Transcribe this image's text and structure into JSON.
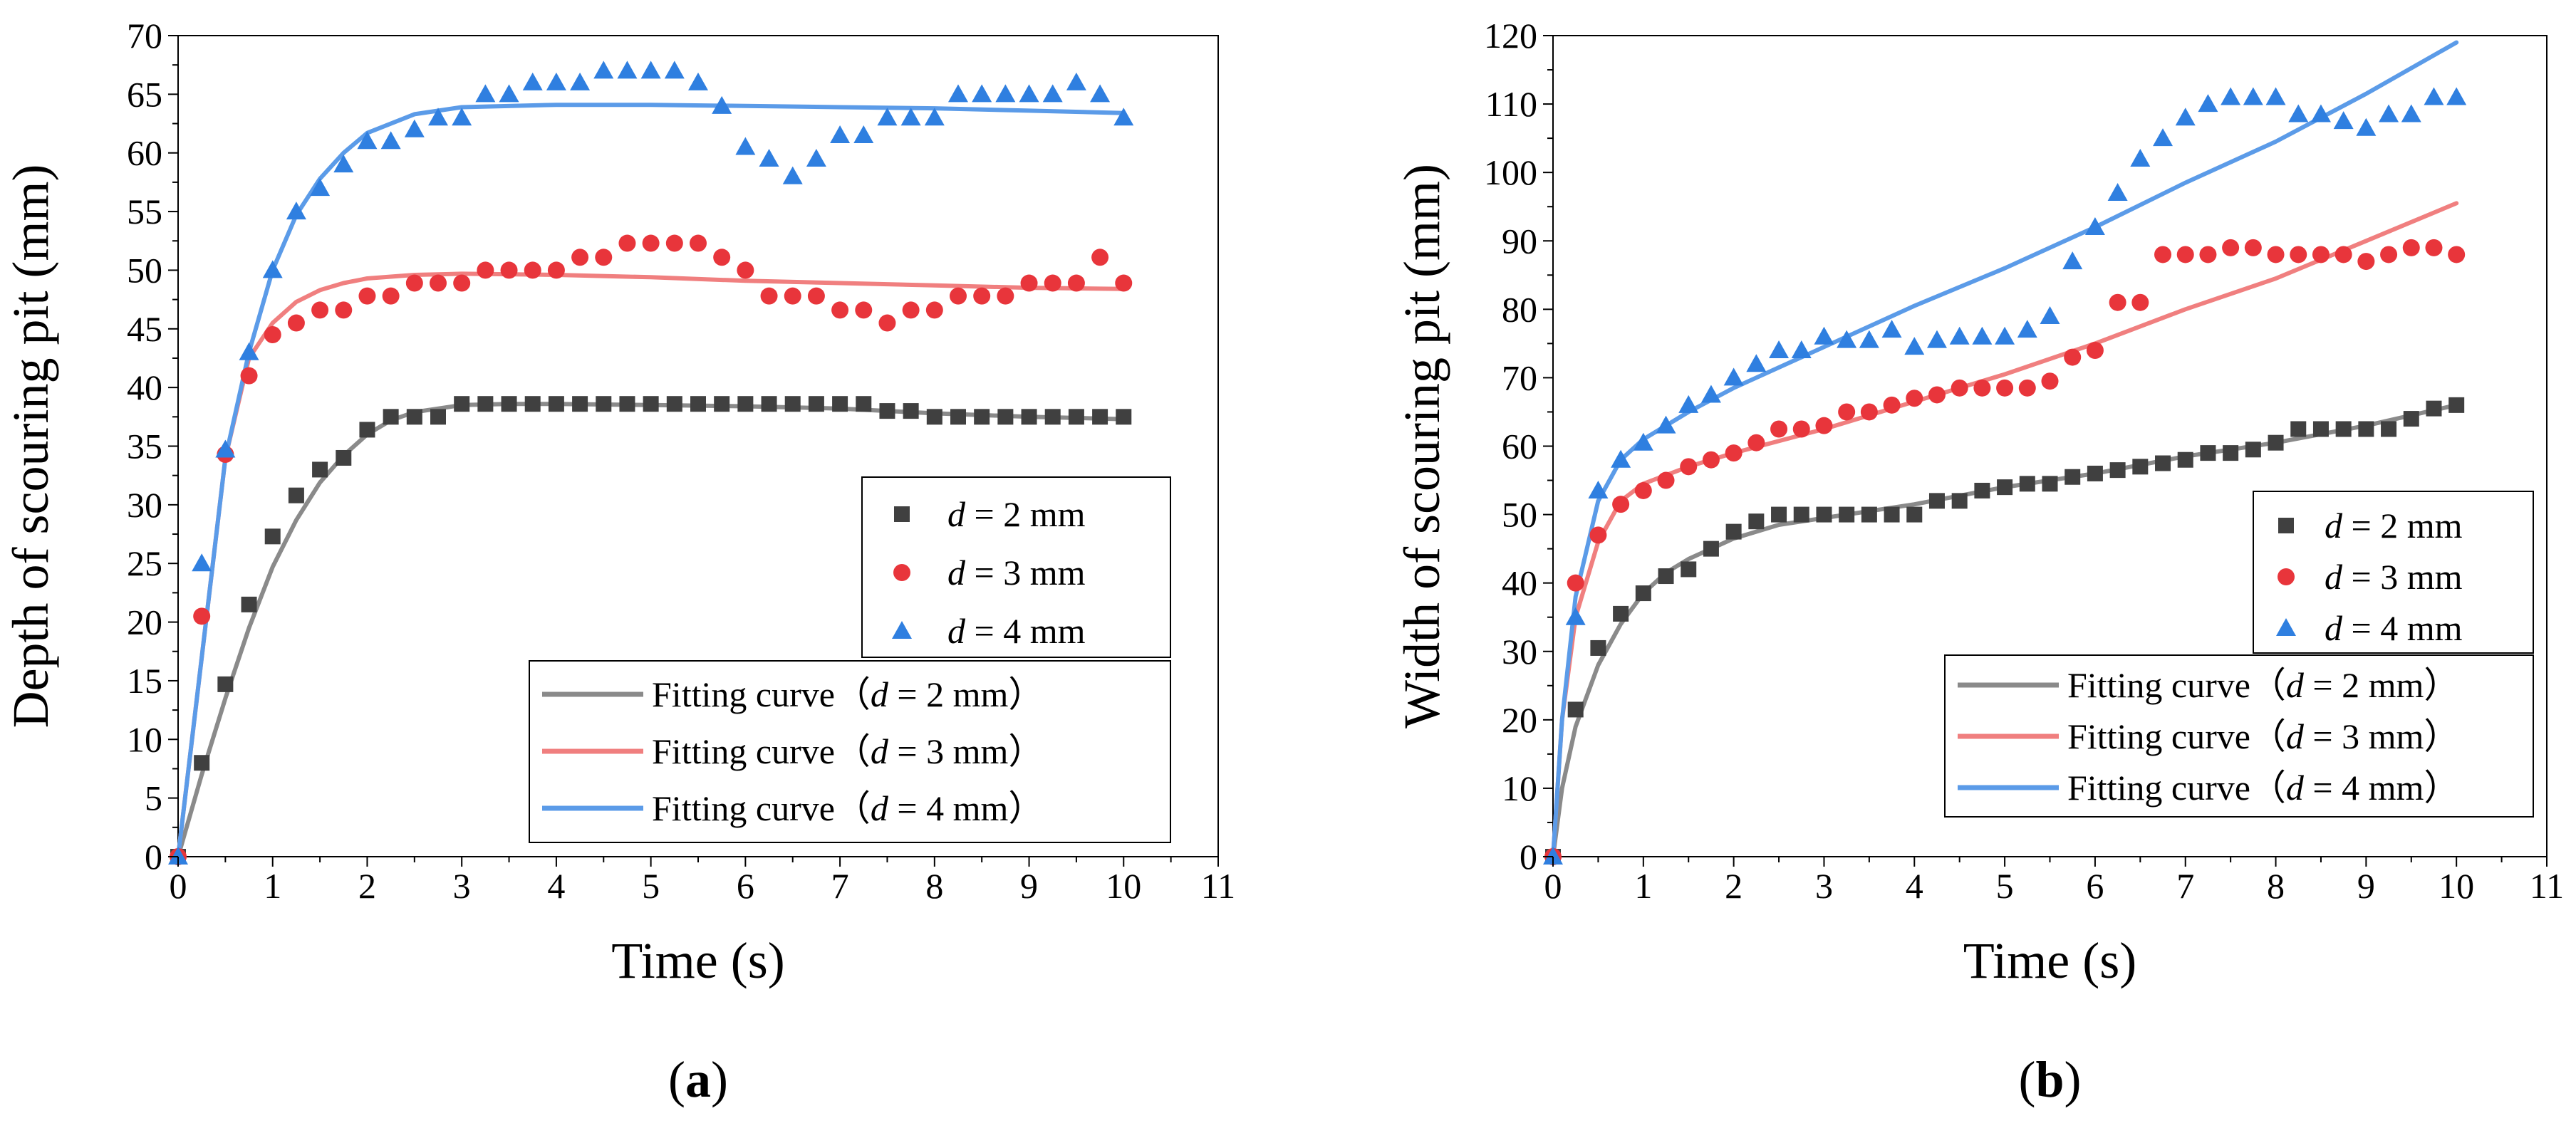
{
  "colors": {
    "d2_marker": "#404040",
    "d3_marker": "#e8353b",
    "d4_marker": "#2f7fe0",
    "d2_fit": "#8a8a8a",
    "d3_fit": "#f07f7f",
    "d4_fit": "#5b9be8"
  },
  "chart_data": [
    {
      "type": "scatter",
      "panel_label": "a",
      "xlabel": "Time (s)",
      "ylabel": "Depth of scouring pit (mm)",
      "xlim": [
        0,
        11
      ],
      "ylim": [
        0,
        70
      ],
      "xticks": [
        0,
        1,
        2,
        3,
        4,
        5,
        6,
        7,
        8,
        9,
        10,
        11
      ],
      "yticks": [
        0,
        5,
        10,
        15,
        20,
        25,
        30,
        35,
        40,
        45,
        50,
        55,
        60,
        65,
        70
      ],
      "legend_scatter": [
        {
          "var": "d",
          "eq": " = 2 mm"
        },
        {
          "var": "d",
          "eq": " = 3 mm"
        },
        {
          "var": "d",
          "eq": " = 4 mm"
        }
      ],
      "legend_fit": [
        {
          "prefix": "Fitting curve（",
          "var": "d",
          "suffix": " = 2 mm）"
        },
        {
          "prefix": "Fitting curve（",
          "var": "d",
          "suffix": " = 3 mm）"
        },
        {
          "prefix": "Fitting curve（",
          "var": "d",
          "suffix": " = 4 mm）"
        }
      ],
      "series": [
        {
          "name": "d = 2 mm",
          "marker": "square",
          "x": [
            0,
            0.25,
            0.5,
            0.75,
            1,
            1.25,
            1.5,
            1.75,
            2,
            2.25,
            2.5,
            2.75,
            3,
            3.25,
            3.5,
            3.75,
            4,
            4.25,
            4.5,
            4.75,
            5,
            5.25,
            5.5,
            5.75,
            6,
            6.25,
            6.5,
            6.75,
            7,
            7.25,
            7.5,
            7.75,
            8,
            8.25,
            8.5,
            8.75,
            9,
            9.25,
            9.5,
            9.75,
            10
          ],
          "y": [
            0,
            8,
            14.7,
            21.5,
            27.3,
            30.8,
            33,
            34,
            36.4,
            37.5,
            37.5,
            37.5,
            38.6,
            38.6,
            38.6,
            38.6,
            38.6,
            38.6,
            38.6,
            38.6,
            38.6,
            38.6,
            38.6,
            38.6,
            38.6,
            38.6,
            38.6,
            38.6,
            38.6,
            38.6,
            38,
            38,
            37.5,
            37.5,
            37.5,
            37.5,
            37.5,
            37.5,
            37.5,
            37.5,
            37.5
          ]
        },
        {
          "name": "d = 3 mm",
          "marker": "circle",
          "x": [
            0,
            0.25,
            0.5,
            0.75,
            1,
            1.25,
            1.5,
            1.75,
            2,
            2.25,
            2.5,
            2.75,
            3,
            3.25,
            3.5,
            3.75,
            4,
            4.25,
            4.5,
            4.75,
            5,
            5.25,
            5.5,
            5.75,
            6,
            6.25,
            6.5,
            6.75,
            7,
            7.25,
            7.5,
            7.75,
            8,
            8.25,
            8.5,
            8.75,
            9,
            9.25,
            9.5,
            9.75,
            10
          ],
          "y": [
            0,
            20.5,
            34.3,
            41,
            44.5,
            45.5,
            46.6,
            46.6,
            47.8,
            47.8,
            48.9,
            48.9,
            48.9,
            50,
            50,
            50,
            50,
            51.1,
            51.1,
            52.3,
            52.3,
            52.3,
            52.3,
            51.1,
            50,
            47.8,
            47.8,
            47.8,
            46.6,
            46.6,
            45.5,
            46.6,
            46.6,
            47.8,
            47.8,
            47.8,
            48.9,
            48.9,
            48.9,
            51.1,
            48.9
          ]
        },
        {
          "name": "d = 4 mm",
          "marker": "triangle",
          "x": [
            0,
            0.25,
            0.5,
            0.75,
            1,
            1.25,
            1.5,
            1.75,
            2,
            2.25,
            2.5,
            2.75,
            3,
            3.25,
            3.5,
            3.75,
            4,
            4.25,
            4.5,
            4.75,
            5,
            5.25,
            5.5,
            5.75,
            6,
            6.25,
            6.5,
            6.75,
            7,
            7.25,
            7.5,
            7.75,
            8,
            8.25,
            8.5,
            8.75,
            9,
            9.25,
            9.5,
            9.75,
            10
          ],
          "y": [
            0,
            25,
            34.7,
            43,
            50,
            55,
            57,
            59,
            61,
            61,
            62,
            63,
            63,
            65,
            65,
            66,
            66,
            66,
            67,
            67,
            67,
            67,
            66,
            64,
            60.5,
            59.5,
            58,
            59.5,
            61.5,
            61.5,
            63,
            63,
            63,
            65,
            65,
            65,
            65,
            65,
            66,
            65,
            63
          ]
        },
        {
          "name": "Fitting curve (d = 2 mm)",
          "kind": "fit",
          "x": [
            0,
            0.25,
            0.5,
            0.75,
            1,
            1.25,
            1.5,
            1.75,
            2,
            2.25,
            2.5,
            3,
            3.5,
            4,
            5,
            6,
            7,
            7.5,
            8,
            9,
            10
          ],
          "y": [
            0,
            7,
            13.5,
            19.5,
            24.7,
            28.7,
            31.9,
            34.2,
            36,
            37.2,
            37.9,
            38.5,
            38.6,
            38.6,
            38.5,
            38.4,
            38.2,
            38,
            37.8,
            37.5,
            37.3
          ]
        },
        {
          "name": "Fitting curve (d = 3 mm)",
          "kind": "fit",
          "x": [
            0,
            0.25,
            0.5,
            0.75,
            1,
            1.25,
            1.5,
            1.75,
            2,
            2.5,
            3,
            4,
            5,
            6,
            7,
            8,
            9,
            10
          ],
          "y": [
            0,
            17,
            34,
            42.5,
            45.5,
            47.3,
            48.3,
            48.9,
            49.3,
            49.6,
            49.7,
            49.6,
            49.4,
            49.1,
            48.9,
            48.7,
            48.5,
            48.4
          ]
        },
        {
          "name": "Fitting curve (d = 4 mm)",
          "kind": "fit",
          "x": [
            0,
            0.25,
            0.5,
            0.75,
            1,
            1.25,
            1.5,
            1.75,
            2,
            2.5,
            3,
            4,
            5,
            6,
            7,
            8,
            9,
            10
          ],
          "y": [
            0,
            17,
            34,
            43,
            50,
            54.7,
            57.8,
            60,
            61.7,
            63.3,
            63.9,
            64.1,
            64.1,
            64,
            63.9,
            63.8,
            63.6,
            63.4
          ]
        }
      ]
    },
    {
      "type": "scatter",
      "panel_label": "b",
      "xlabel": "Time (s)",
      "ylabel": "Width of scouring pit (mm)",
      "xlim": [
        0,
        11
      ],
      "ylim": [
        0,
        120
      ],
      "xticks": [
        0,
        1,
        2,
        3,
        4,
        5,
        6,
        7,
        8,
        9,
        10,
        11
      ],
      "yticks": [
        0,
        10,
        20,
        30,
        40,
        50,
        60,
        70,
        80,
        90,
        100,
        110,
        120
      ],
      "legend_scatter": [
        {
          "var": "d",
          "eq": " = 2 mm"
        },
        {
          "var": "d",
          "eq": " = 3 mm"
        },
        {
          "var": "d",
          "eq": " = 4 mm"
        }
      ],
      "legend_fit": [
        {
          "prefix": "Fitting curve（",
          "var": "d",
          "suffix": " = 2 mm）"
        },
        {
          "prefix": "Fitting curve（",
          "var": "d",
          "suffix": " = 3 mm）"
        },
        {
          "prefix": "Fitting curve（",
          "var": "d",
          "suffix": " = 4 mm）"
        }
      ],
      "series": [
        {
          "name": "d = 2 mm",
          "marker": "square",
          "x": [
            0,
            0.25,
            0.5,
            0.75,
            1,
            1.25,
            1.5,
            1.75,
            2,
            2.25,
            2.5,
            2.75,
            3,
            3.25,
            3.5,
            3.75,
            4,
            4.25,
            4.5,
            4.75,
            5,
            5.25,
            5.5,
            5.75,
            6,
            6.25,
            6.5,
            6.75,
            7,
            7.25,
            7.5,
            7.75,
            8,
            8.25,
            8.5,
            8.75,
            9,
            9.25,
            9.5,
            9.75,
            10
          ],
          "y": [
            0,
            21.5,
            30.5,
            35.5,
            38.5,
            41,
            42,
            45,
            47.5,
            49,
            50,
            50,
            50,
            50,
            50,
            50,
            50,
            52,
            52,
            53.5,
            54,
            54.5,
            54.5,
            55.5,
            56,
            56.5,
            57,
            57.5,
            58,
            59,
            59,
            59.5,
            60.5,
            62.5,
            62.5,
            62.5,
            62.5,
            62.5,
            64,
            65.5,
            66
          ]
        },
        {
          "name": "d = 3 mm",
          "marker": "circle",
          "x": [
            0,
            0.25,
            0.5,
            0.75,
            1,
            1.25,
            1.5,
            1.75,
            2,
            2.25,
            2.5,
            2.75,
            3,
            3.25,
            3.5,
            3.75,
            4,
            4.25,
            4.5,
            4.75,
            5,
            5.25,
            5.5,
            5.75,
            6,
            6.25,
            6.5,
            6.75,
            7,
            7.25,
            7.5,
            7.75,
            8,
            8.25,
            8.5,
            8.75,
            9,
            9.25,
            9.5,
            9.75,
            10
          ],
          "y": [
            0,
            40,
            47,
            51.5,
            53.5,
            55,
            57,
            58,
            59,
            60.5,
            62.5,
            62.5,
            63,
            65,
            65,
            66,
            67,
            67.5,
            68.5,
            68.5,
            68.5,
            68.5,
            69.5,
            73,
            74,
            81,
            81,
            88,
            88,
            88,
            89,
            89,
            88,
            88,
            88,
            88,
            87,
            88,
            89,
            89,
            88
          ]
        },
        {
          "name": "d = 4 mm",
          "marker": "triangle",
          "x": [
            0,
            0.25,
            0.5,
            0.75,
            1,
            1.25,
            1.5,
            1.75,
            2,
            2.25,
            2.5,
            2.75,
            3,
            3.25,
            3.5,
            3.75,
            4,
            4.25,
            4.5,
            4.75,
            5,
            5.25,
            5.5,
            5.75,
            6,
            6.25,
            6.5,
            6.75,
            7,
            7.25,
            7.5,
            7.75,
            8,
            8.25,
            8.5,
            8.75,
            9,
            9.25,
            9.5,
            9.75,
            10
          ],
          "y": [
            0,
            35,
            53.5,
            58,
            60.5,
            63,
            66,
            67.5,
            70,
            72,
            74,
            74,
            76,
            75.5,
            75.5,
            77,
            74.5,
            75.5,
            76,
            76,
            76,
            77,
            79,
            87,
            92,
            97,
            102,
            105,
            108,
            110,
            111,
            111,
            111,
            108.5,
            108.5,
            107.5,
            106.5,
            108.5,
            108.5,
            111,
            111
          ]
        },
        {
          "name": "Fitting curve (d = 2 mm)",
          "kind": "fit",
          "x": [
            0,
            0.1,
            0.25,
            0.5,
            0.75,
            1,
            1.25,
            1.5,
            2,
            2.5,
            3,
            4,
            5,
            6,
            7,
            8,
            9,
            10
          ],
          "y": [
            0,
            10,
            19,
            28,
            34,
            38.5,
            41.5,
            43.5,
            46.5,
            48.5,
            49.5,
            51.5,
            54,
            56,
            58.5,
            60.5,
            63,
            66
          ]
        },
        {
          "name": "Fitting curve (d = 3 mm)",
          "kind": "fit",
          "x": [
            0,
            0.1,
            0.25,
            0.5,
            0.75,
            1,
            1.5,
            2,
            3,
            4,
            5,
            6,
            7,
            8,
            9,
            10
          ],
          "y": [
            0,
            20,
            35,
            46,
            52,
            54.5,
            57,
            59,
            62.5,
            66.5,
            70.5,
            75,
            80,
            84.5,
            90,
            95.5
          ]
        },
        {
          "name": "Fitting curve (d = 4 mm)",
          "kind": "fit",
          "x": [
            0,
            0.1,
            0.25,
            0.5,
            0.75,
            1,
            1.5,
            2,
            3,
            4,
            5,
            6,
            7,
            8,
            9,
            10
          ],
          "y": [
            0,
            20,
            38,
            52,
            58,
            61,
            65,
            68.5,
            74.5,
            80.5,
            86,
            92,
            98.5,
            104.5,
            111.5,
            119
          ]
        }
      ]
    }
  ]
}
